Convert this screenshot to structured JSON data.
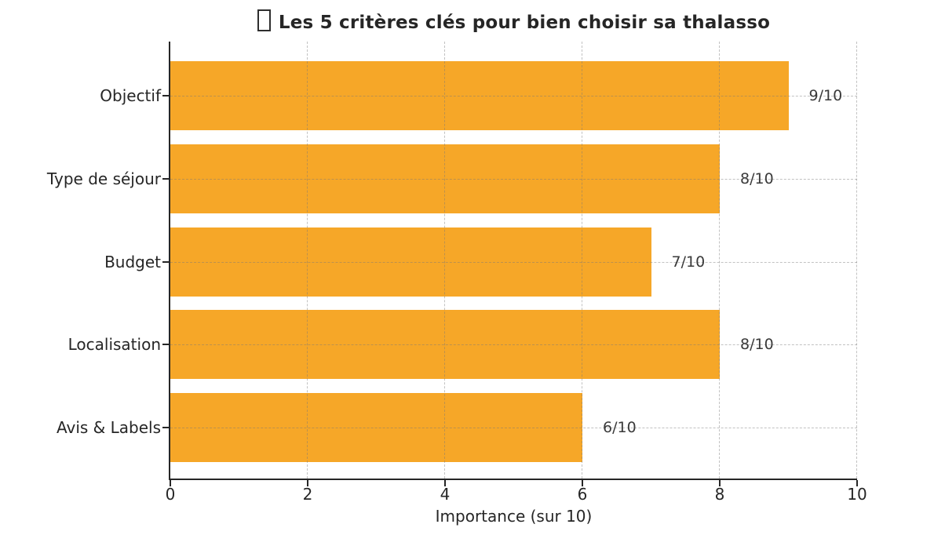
{
  "chart_data": {
    "type": "bar",
    "orientation": "horizontal",
    "title": "Les 5 critères clés pour bien choisir sa thalasso",
    "title_leading_glyph": "missing-emoji-box",
    "categories": [
      "Objectif",
      "Type de séjour",
      "Budget",
      "Localisation",
      "Avis & Labels"
    ],
    "values": [
      9,
      8,
      7,
      8,
      6
    ],
    "value_labels": [
      "9/10",
      "8/10",
      "7/10",
      "8/10",
      "6/10"
    ],
    "xlabel": "Importance (sur 10)",
    "xlim": [
      0,
      10
    ],
    "xticks": [
      "0",
      "2",
      "4",
      "6",
      "8",
      "10"
    ],
    "grid": "dashed, drawn over bars",
    "legend_position": "none",
    "colors": {
      "bar": "#F6A728",
      "title_text": "#262626",
      "axis_text": "#262626",
      "value_label_text": "#3a3a3a",
      "gridline": "#c2c2c2",
      "spine": "#262626"
    }
  }
}
